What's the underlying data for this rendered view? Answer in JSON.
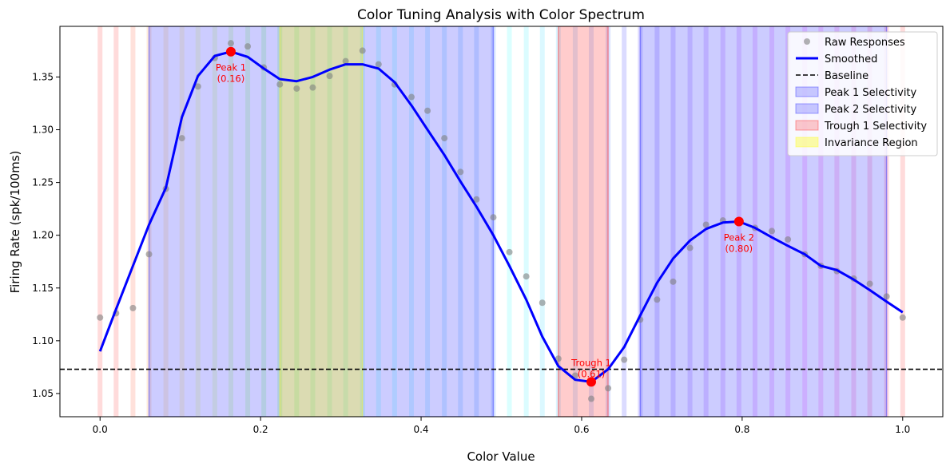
{
  "chart_data": {
    "type": "line",
    "title": "Color Tuning Analysis with Color Spectrum",
    "xlabel": "Color Value",
    "ylabel": "Firing Rate (spk/100ms)",
    "xlim": [
      -0.05,
      1.05
    ],
    "ylim": [
      1.028,
      1.398
    ],
    "xticks": [
      0.0,
      0.2,
      0.4,
      0.6,
      0.8,
      1.0
    ],
    "xtick_labels": [
      "0.0",
      "0.2",
      "0.4",
      "0.6",
      "0.8",
      "1.0"
    ],
    "yticks": [
      1.05,
      1.1,
      1.15,
      1.2,
      1.25,
      1.3,
      1.35
    ],
    "ytick_labels": [
      "1.05",
      "1.10",
      "1.15",
      "1.20",
      "1.25",
      "1.30",
      "1.35"
    ],
    "grid": false,
    "legend_position": "top-right",
    "colors": {
      "raw": "#808080",
      "smoothed": "#0000ff",
      "baseline": "#000000",
      "peak": "#ff0000",
      "peak_region": "#0000ff",
      "trough_region": "#ff0000",
      "invariance_region": "#ffff00"
    },
    "legend": [
      {
        "label": "Raw Responses",
        "kind": "marker",
        "color": "#808080"
      },
      {
        "label": "Smoothed",
        "kind": "line",
        "color": "#0000ff"
      },
      {
        "label": "Baseline",
        "kind": "dashed",
        "color": "#000000"
      },
      {
        "label": "Peak 1 Selectivity",
        "kind": "patch",
        "color": "#0000ff"
      },
      {
        "label": "Peak 2 Selectivity",
        "kind": "patch",
        "color": "#0000ff"
      },
      {
        "label": "Trough 1 Selectivity",
        "kind": "patch",
        "color": "#ff0000"
      },
      {
        "label": "Invariance Region",
        "kind": "patch",
        "color": "#ffff00"
      }
    ],
    "baseline": 1.073,
    "regions": [
      {
        "name": "Peak 1 Selectivity",
        "x0": 0.061,
        "x1": 0.49,
        "color": "#0000ff",
        "opacity": 0.2
      },
      {
        "name": "Peak 2 Selectivity",
        "x0": 0.673,
        "x1": 0.98,
        "color": "#0000ff",
        "opacity": 0.2
      },
      {
        "name": "Trough 1 Selectivity",
        "x0": 0.571,
        "x1": 0.633,
        "color": "#ff0000",
        "opacity": 0.2
      },
      {
        "name": "Invariance Region",
        "x0": 0.224,
        "x1": 0.327,
        "color": "#ffff00",
        "opacity": 0.3
      }
    ],
    "spectrum_stripes": [
      {
        "x": 0.0,
        "color": "#ff9999"
      },
      {
        "x": 0.02,
        "color": "#ff9999"
      },
      {
        "x": 0.041,
        "color": "#ffa999"
      },
      {
        "x": 0.061,
        "color": "#ffc999"
      },
      {
        "x": 0.082,
        "color": "#ffe099"
      },
      {
        "x": 0.102,
        "color": "#fff099"
      },
      {
        "x": 0.122,
        "color": "#f0ff99"
      },
      {
        "x": 0.143,
        "color": "#e0ff99"
      },
      {
        "x": 0.163,
        "color": "#ccff99"
      },
      {
        "x": 0.184,
        "color": "#b9ff99"
      },
      {
        "x": 0.204,
        "color": "#a9ff99"
      },
      {
        "x": 0.224,
        "color": "#99ff99"
      },
      {
        "x": 0.245,
        "color": "#99ffa9"
      },
      {
        "x": 0.265,
        "color": "#99ffb9"
      },
      {
        "x": 0.286,
        "color": "#99ffc9"
      },
      {
        "x": 0.306,
        "color": "#99ffd9"
      },
      {
        "x": 0.327,
        "color": "#99ffe9"
      },
      {
        "x": 0.347,
        "color": "#99fff9"
      },
      {
        "x": 0.367,
        "color": "#99ffff"
      },
      {
        "x": 0.388,
        "color": "#99f0ff"
      },
      {
        "x": 0.408,
        "color": "#99e6ff"
      },
      {
        "x": 0.429,
        "color": "#99dcff"
      },
      {
        "x": 0.449,
        "color": "#99d2ff"
      },
      {
        "x": 0.469,
        "color": "#99c8ff"
      },
      {
        "x": 0.49,
        "color": "#99bfff"
      },
      {
        "x": 0.51,
        "color": "#99ffff"
      },
      {
        "x": 0.531,
        "color": "#99f5ff"
      },
      {
        "x": 0.551,
        "color": "#99ecff"
      },
      {
        "x": 0.571,
        "color": "#99e0ff"
      },
      {
        "x": 0.592,
        "color": "#99d0ff"
      },
      {
        "x": 0.612,
        "color": "#99c0ff"
      },
      {
        "x": 0.633,
        "color": "#99b0ff"
      },
      {
        "x": 0.653,
        "color": "#9999ff"
      },
      {
        "x": 0.673,
        "color": "#a099ff"
      },
      {
        "x": 0.694,
        "color": "#aa99ff"
      },
      {
        "x": 0.714,
        "color": "#b399ff"
      },
      {
        "x": 0.735,
        "color": "#bc99ff"
      },
      {
        "x": 0.755,
        "color": "#c699ff"
      },
      {
        "x": 0.776,
        "color": "#cf99ff"
      },
      {
        "x": 0.796,
        "color": "#d899ff"
      },
      {
        "x": 0.816,
        "color": "#e299ff"
      },
      {
        "x": 0.837,
        "color": "#eb99ff"
      },
      {
        "x": 0.857,
        "color": "#f499ff"
      },
      {
        "x": 0.878,
        "color": "#ff99ff"
      },
      {
        "x": 0.898,
        "color": "#ff99f0"
      },
      {
        "x": 0.918,
        "color": "#ff99e0"
      },
      {
        "x": 0.939,
        "color": "#ff99d0"
      },
      {
        "x": 0.959,
        "color": "#ff99c0"
      },
      {
        "x": 0.98,
        "color": "#ff99b0"
      },
      {
        "x": 1.0,
        "color": "#ff9999"
      }
    ],
    "series": [
      {
        "name": "Raw Responses",
        "type": "scatter",
        "x": [
          0.0,
          0.02,
          0.041,
          0.061,
          0.082,
          0.102,
          0.122,
          0.143,
          0.163,
          0.184,
          0.204,
          0.224,
          0.245,
          0.265,
          0.286,
          0.306,
          0.327,
          0.347,
          0.367,
          0.388,
          0.408,
          0.429,
          0.449,
          0.469,
          0.49,
          0.51,
          0.531,
          0.551,
          0.571,
          0.592,
          0.612,
          0.633,
          0.653,
          0.673,
          0.694,
          0.714,
          0.735,
          0.755,
          0.776,
          0.796,
          0.816,
          0.837,
          0.857,
          0.878,
          0.898,
          0.918,
          0.939,
          0.959,
          0.98,
          1.0
        ],
        "y": [
          1.122,
          1.126,
          1.131,
          1.182,
          1.244,
          1.292,
          1.341,
          1.368,
          1.382,
          1.379,
          1.359,
          1.343,
          1.339,
          1.34,
          1.351,
          1.365,
          1.375,
          1.362,
          1.343,
          1.331,
          1.318,
          1.292,
          1.26,
          1.234,
          1.217,
          1.184,
          1.161,
          1.136,
          1.083,
          1.067,
          1.045,
          1.055,
          1.082,
          1.12,
          1.139,
          1.156,
          1.188,
          1.21,
          1.214,
          1.212,
          1.207,
          1.204,
          1.196,
          1.182,
          1.171,
          1.166,
          1.159,
          1.154,
          1.142,
          1.122
        ]
      },
      {
        "name": "Smoothed",
        "type": "line",
        "x": [
          0.0,
          0.02,
          0.041,
          0.061,
          0.082,
          0.102,
          0.122,
          0.143,
          0.163,
          0.184,
          0.204,
          0.224,
          0.245,
          0.265,
          0.286,
          0.306,
          0.327,
          0.347,
          0.367,
          0.388,
          0.408,
          0.429,
          0.449,
          0.469,
          0.49,
          0.51,
          0.531,
          0.551,
          0.571,
          0.592,
          0.612,
          0.633,
          0.653,
          0.673,
          0.694,
          0.714,
          0.735,
          0.755,
          0.776,
          0.796,
          0.816,
          0.837,
          0.857,
          0.878,
          0.898,
          0.918,
          0.939,
          0.959,
          0.98,
          1.0
        ],
        "y": [
          1.09,
          1.13,
          1.171,
          1.21,
          1.245,
          1.312,
          1.351,
          1.37,
          1.374,
          1.369,
          1.358,
          1.348,
          1.346,
          1.35,
          1.357,
          1.362,
          1.362,
          1.358,
          1.345,
          1.323,
          1.3,
          1.276,
          1.251,
          1.227,
          1.2,
          1.171,
          1.139,
          1.104,
          1.076,
          1.063,
          1.061,
          1.073,
          1.094,
          1.124,
          1.155,
          1.178,
          1.195,
          1.206,
          1.212,
          1.213,
          1.207,
          1.198,
          1.19,
          1.182,
          1.171,
          1.167,
          1.158,
          1.148,
          1.137,
          1.127
        ]
      }
    ],
    "annotations": [
      {
        "label": "Peak 1",
        "value_label": "(0.16)",
        "x": 0.163,
        "y": 1.374
      },
      {
        "label": "Trough 1",
        "value_label": "(0.61)",
        "x": 0.612,
        "y": 1.061
      },
      {
        "label": "Peak 2",
        "value_label": "(0.80)",
        "x": 0.796,
        "y": 1.213
      }
    ]
  }
}
